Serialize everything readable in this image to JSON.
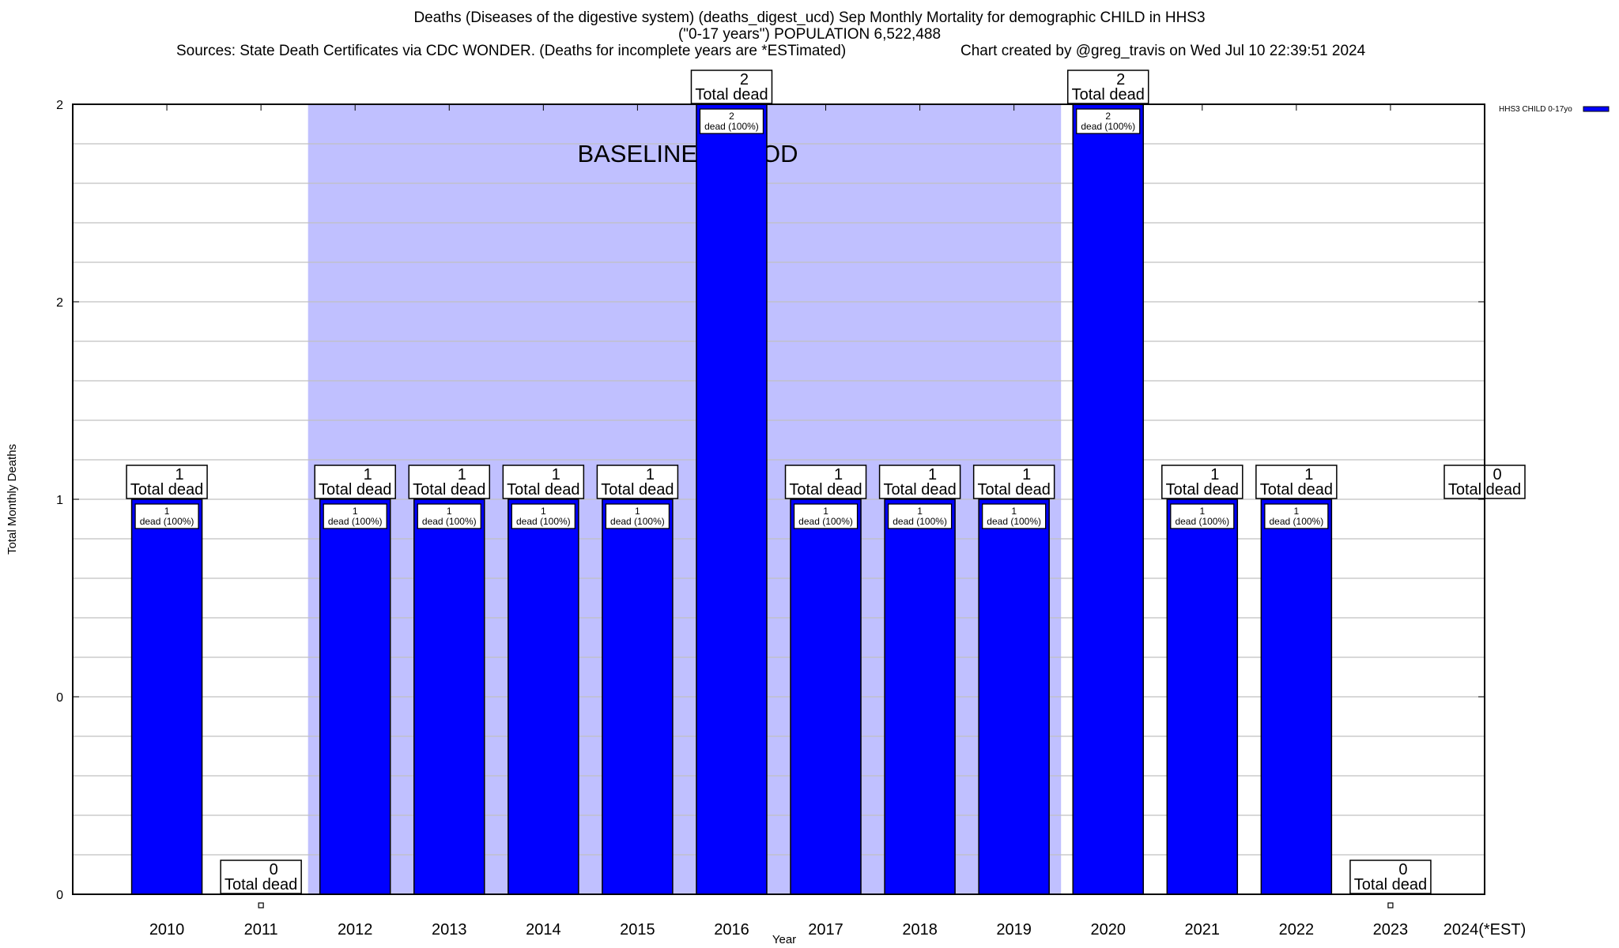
{
  "chart_data": {
    "type": "bar",
    "title_line1": "Deaths (Diseases of the digestive system) (deaths_digest_ucd) Sep Monthly Mortality for demographic CHILD in HHS3",
    "title_line2": "(\"0-17 years\") POPULATION 6,522,488",
    "sources": "Sources: State Death Certificates via CDC WONDER. (Deaths for incomplete years are *ESTimated)",
    "credit": "Chart created by @greg_travis on Wed Jul 10 22:39:51 2024",
    "xlabel": "Year",
    "ylabel": "Total Monthly Deaths",
    "categories": [
      "2010",
      "2011",
      "2012",
      "2013",
      "2014",
      "2015",
      "2016",
      "2017",
      "2018",
      "2019",
      "2020",
      "2021",
      "2022",
      "2023",
      "2024(*EST)"
    ],
    "values": [
      1,
      0,
      1,
      1,
      1,
      1,
      2,
      1,
      1,
      1,
      2,
      1,
      1,
      0,
      0
    ],
    "total_label_suffix": "Total dead",
    "bar_label_suffix": "dead (100%)",
    "ylim": [
      0,
      2
    ],
    "yticks": [
      0,
      0.5,
      1,
      1.5,
      2
    ],
    "ytick_labels": [
      "0",
      "0",
      "1",
      "2",
      "2"
    ],
    "grid": true,
    "baseline_period": {
      "label": "BASELINE PERIOD",
      "start": "2012",
      "end": "2019"
    },
    "legend": {
      "label": "HHS3 CHILD 0-17yo",
      "placement": "top-right"
    },
    "colors": {
      "bar": "#0000ff",
      "baseline": "#c0c0ff",
      "grid": "#c0c0c0"
    }
  }
}
